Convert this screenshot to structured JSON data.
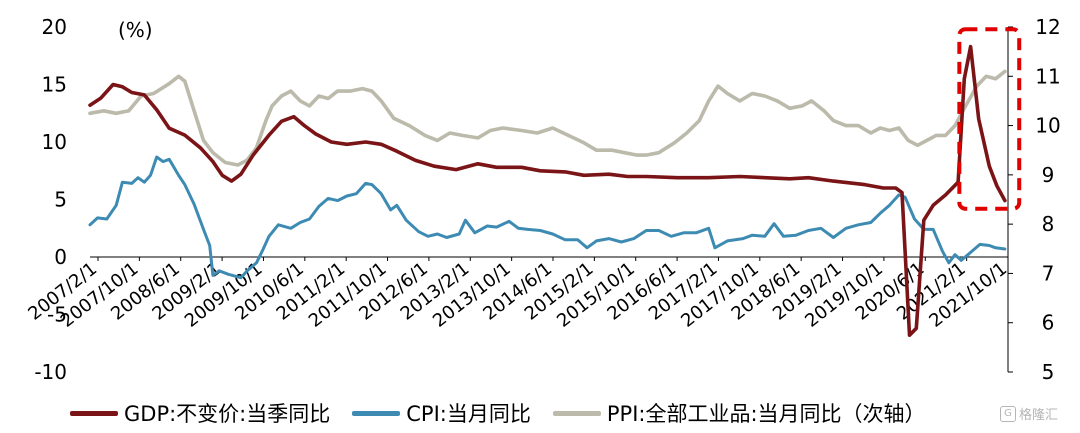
{
  "chart_data": {
    "type": "line",
    "unit_label": "(%)",
    "x_tick_labels": [
      "2007/2/1",
      "2007/10/1",
      "2008/6/1",
      "2009/2/1",
      "2009/10/1",
      "2010/6/1",
      "2011/2/1",
      "2011/10/1",
      "2012/6/1",
      "2013/2/1",
      "2013/10/1",
      "2014/6/1",
      "2015/2/1",
      "2015/10/1",
      "2016/6/1",
      "2017/2/1",
      "2017/10/1",
      "2018/6/1",
      "2019/2/1",
      "2019/10/1",
      "2020/6/1",
      "2021/2/1",
      "2021/10/1"
    ],
    "x_range": [
      2007.08,
      2021.8
    ],
    "y_left": {
      "ticks": [
        "20",
        "15",
        "10",
        "5",
        "0",
        "-5",
        "-10"
      ],
      "ylim": [
        -10,
        20
      ]
    },
    "y_right": {
      "ticks": [
        "12",
        "11",
        "10",
        "9",
        "8",
        "7",
        "6",
        "5"
      ],
      "ylim": [
        5,
        12
      ]
    },
    "series": [
      {
        "name": "GDP:不变价:当季同比",
        "axis": "left",
        "color": "#7a1416",
        "points": [
          [
            2007.08,
            13.2
          ],
          [
            2007.25,
            13.8
          ],
          [
            2007.45,
            15.0
          ],
          [
            2007.6,
            14.8
          ],
          [
            2007.75,
            14.3
          ],
          [
            2007.95,
            14.1
          ],
          [
            2008.15,
            12.8
          ],
          [
            2008.35,
            11.2
          ],
          [
            2008.6,
            10.6
          ],
          [
            2008.85,
            9.5
          ],
          [
            2009.05,
            8.3
          ],
          [
            2009.2,
            7.1
          ],
          [
            2009.35,
            6.6
          ],
          [
            2009.5,
            7.2
          ],
          [
            2009.7,
            8.9
          ],
          [
            2009.95,
            10.6
          ],
          [
            2010.15,
            11.8
          ],
          [
            2010.35,
            12.2
          ],
          [
            2010.5,
            11.5
          ],
          [
            2010.7,
            10.7
          ],
          [
            2010.95,
            10.0
          ],
          [
            2011.2,
            9.8
          ],
          [
            2011.5,
            10.0
          ],
          [
            2011.75,
            9.8
          ],
          [
            2012.0,
            9.2
          ],
          [
            2012.3,
            8.4
          ],
          [
            2012.6,
            7.9
          ],
          [
            2012.95,
            7.6
          ],
          [
            2013.3,
            8.1
          ],
          [
            2013.6,
            7.8
          ],
          [
            2014.0,
            7.8
          ],
          [
            2014.3,
            7.5
          ],
          [
            2014.7,
            7.4
          ],
          [
            2015.0,
            7.1
          ],
          [
            2015.4,
            7.2
          ],
          [
            2015.7,
            7.0
          ],
          [
            2016.0,
            7.0
          ],
          [
            2016.5,
            6.9
          ],
          [
            2017.0,
            6.9
          ],
          [
            2017.5,
            7.0
          ],
          [
            2017.9,
            6.9
          ],
          [
            2018.3,
            6.8
          ],
          [
            2018.6,
            6.9
          ],
          [
            2019.0,
            6.6
          ],
          [
            2019.5,
            6.3
          ],
          [
            2019.8,
            6.0
          ],
          [
            2020.0,
            6.0
          ],
          [
            2020.1,
            5.6
          ],
          [
            2020.22,
            -6.8
          ],
          [
            2020.33,
            -6.2
          ],
          [
            2020.45,
            3.2
          ],
          [
            2020.6,
            4.5
          ],
          [
            2020.8,
            5.4
          ],
          [
            2021.0,
            6.5
          ],
          [
            2021.1,
            15.5
          ],
          [
            2021.2,
            18.3
          ],
          [
            2021.33,
            12.0
          ],
          [
            2021.5,
            7.9
          ],
          [
            2021.62,
            6.2
          ],
          [
            2021.75,
            4.9
          ]
        ]
      },
      {
        "name": "CPI:当月同比",
        "axis": "left",
        "color": "#3d8bb3",
        "points": [
          [
            2007.08,
            2.8
          ],
          [
            2007.2,
            3.4
          ],
          [
            2007.35,
            3.3
          ],
          [
            2007.5,
            4.5
          ],
          [
            2007.6,
            6.5
          ],
          [
            2007.75,
            6.4
          ],
          [
            2007.85,
            6.9
          ],
          [
            2007.95,
            6.5
          ],
          [
            2008.05,
            7.1
          ],
          [
            2008.15,
            8.7
          ],
          [
            2008.25,
            8.3
          ],
          [
            2008.35,
            8.5
          ],
          [
            2008.5,
            7.1
          ],
          [
            2008.6,
            6.3
          ],
          [
            2008.75,
            4.6
          ],
          [
            2008.9,
            2.4
          ],
          [
            2009.0,
            1.0
          ],
          [
            2009.05,
            -1.6
          ],
          [
            2009.15,
            -1.2
          ],
          [
            2009.3,
            -1.5
          ],
          [
            2009.5,
            -1.8
          ],
          [
            2009.6,
            -1.2
          ],
          [
            2009.75,
            -0.5
          ],
          [
            2009.85,
            0.6
          ],
          [
            2009.95,
            1.8
          ],
          [
            2010.1,
            2.8
          ],
          [
            2010.3,
            2.5
          ],
          [
            2010.45,
            3.0
          ],
          [
            2010.6,
            3.3
          ],
          [
            2010.75,
            4.4
          ],
          [
            2010.9,
            5.1
          ],
          [
            2011.05,
            4.9
          ],
          [
            2011.2,
            5.3
          ],
          [
            2011.35,
            5.5
          ],
          [
            2011.5,
            6.4
          ],
          [
            2011.6,
            6.3
          ],
          [
            2011.75,
            5.5
          ],
          [
            2011.9,
            4.1
          ],
          [
            2012.0,
            4.5
          ],
          [
            2012.15,
            3.2
          ],
          [
            2012.35,
            2.2
          ],
          [
            2012.5,
            1.8
          ],
          [
            2012.65,
            2.0
          ],
          [
            2012.8,
            1.7
          ],
          [
            2013.0,
            2.0
          ],
          [
            2013.1,
            3.2
          ],
          [
            2013.25,
            2.1
          ],
          [
            2013.45,
            2.7
          ],
          [
            2013.6,
            2.6
          ],
          [
            2013.8,
            3.1
          ],
          [
            2013.95,
            2.5
          ],
          [
            2014.1,
            2.4
          ],
          [
            2014.3,
            2.3
          ],
          [
            2014.5,
            2.0
          ],
          [
            2014.7,
            1.5
          ],
          [
            2014.9,
            1.5
          ],
          [
            2015.05,
            0.8
          ],
          [
            2015.2,
            1.4
          ],
          [
            2015.4,
            1.6
          ],
          [
            2015.6,
            1.3
          ],
          [
            2015.8,
            1.6
          ],
          [
            2016.0,
            2.3
          ],
          [
            2016.2,
            2.3
          ],
          [
            2016.4,
            1.8
          ],
          [
            2016.6,
            2.1
          ],
          [
            2016.8,
            2.1
          ],
          [
            2017.0,
            2.5
          ],
          [
            2017.1,
            0.8
          ],
          [
            2017.3,
            1.4
          ],
          [
            2017.55,
            1.6
          ],
          [
            2017.7,
            1.9
          ],
          [
            2017.9,
            1.8
          ],
          [
            2018.05,
            2.9
          ],
          [
            2018.2,
            1.8
          ],
          [
            2018.4,
            1.9
          ],
          [
            2018.6,
            2.3
          ],
          [
            2018.8,
            2.5
          ],
          [
            2019.0,
            1.7
          ],
          [
            2019.2,
            2.5
          ],
          [
            2019.4,
            2.8
          ],
          [
            2019.6,
            3.0
          ],
          [
            2019.75,
            3.8
          ],
          [
            2019.9,
            4.5
          ],
          [
            2020.05,
            5.4
          ],
          [
            2020.15,
            5.2
          ],
          [
            2020.3,
            3.3
          ],
          [
            2020.45,
            2.4
          ],
          [
            2020.6,
            2.4
          ],
          [
            2020.75,
            0.5
          ],
          [
            2020.85,
            -0.5
          ],
          [
            2020.95,
            0.2
          ],
          [
            2021.05,
            -0.3
          ],
          [
            2021.2,
            0.4
          ],
          [
            2021.35,
            1.1
          ],
          [
            2021.5,
            1.0
          ],
          [
            2021.6,
            0.8
          ],
          [
            2021.75,
            0.7
          ]
        ]
      },
      {
        "name": "PPI:全部工业品:当月同比（次轴）",
        "axis": "right",
        "color": "#bbbaab",
        "points": [
          [
            2007.08,
            10.25
          ],
          [
            2007.3,
            10.3
          ],
          [
            2007.5,
            10.25
          ],
          [
            2007.7,
            10.3
          ],
          [
            2007.9,
            10.6
          ],
          [
            2008.1,
            10.65
          ],
          [
            2008.35,
            10.85
          ],
          [
            2008.5,
            11.0
          ],
          [
            2008.6,
            10.9
          ],
          [
            2008.75,
            10.3
          ],
          [
            2008.9,
            9.7
          ],
          [
            2009.05,
            9.45
          ],
          [
            2009.25,
            9.25
          ],
          [
            2009.45,
            9.2
          ],
          [
            2009.6,
            9.3
          ],
          [
            2009.75,
            9.55
          ],
          [
            2009.9,
            10.1
          ],
          [
            2010.0,
            10.4
          ],
          [
            2010.15,
            10.6
          ],
          [
            2010.3,
            10.7
          ],
          [
            2010.45,
            10.5
          ],
          [
            2010.6,
            10.4
          ],
          [
            2010.75,
            10.6
          ],
          [
            2010.9,
            10.55
          ],
          [
            2011.05,
            10.7
          ],
          [
            2011.25,
            10.7
          ],
          [
            2011.45,
            10.75
          ],
          [
            2011.6,
            10.7
          ],
          [
            2011.75,
            10.5
          ],
          [
            2011.95,
            10.15
          ],
          [
            2012.2,
            10.0
          ],
          [
            2012.45,
            9.8
          ],
          [
            2012.65,
            9.7
          ],
          [
            2012.85,
            9.85
          ],
          [
            2013.05,
            9.8
          ],
          [
            2013.3,
            9.75
          ],
          [
            2013.5,
            9.9
          ],
          [
            2013.7,
            9.95
          ],
          [
            2014.0,
            9.9
          ],
          [
            2014.25,
            9.85
          ],
          [
            2014.5,
            9.95
          ],
          [
            2014.75,
            9.8
          ],
          [
            2015.0,
            9.65
          ],
          [
            2015.2,
            9.5
          ],
          [
            2015.45,
            9.5
          ],
          [
            2015.65,
            9.45
          ],
          [
            2015.85,
            9.4
          ],
          [
            2016.0,
            9.4
          ],
          [
            2016.2,
            9.45
          ],
          [
            2016.45,
            9.65
          ],
          [
            2016.65,
            9.85
          ],
          [
            2016.85,
            10.1
          ],
          [
            2017.0,
            10.5
          ],
          [
            2017.15,
            10.8
          ],
          [
            2017.3,
            10.65
          ],
          [
            2017.5,
            10.5
          ],
          [
            2017.7,
            10.65
          ],
          [
            2017.9,
            10.6
          ],
          [
            2018.1,
            10.5
          ],
          [
            2018.3,
            10.35
          ],
          [
            2018.5,
            10.4
          ],
          [
            2018.65,
            10.5
          ],
          [
            2018.85,
            10.3
          ],
          [
            2019.0,
            10.1
          ],
          [
            2019.2,
            10.0
          ],
          [
            2019.4,
            10.0
          ],
          [
            2019.6,
            9.85
          ],
          [
            2019.75,
            9.95
          ],
          [
            2019.9,
            9.9
          ],
          [
            2020.05,
            9.95
          ],
          [
            2020.2,
            9.7
          ],
          [
            2020.35,
            9.6
          ],
          [
            2020.5,
            9.7
          ],
          [
            2020.65,
            9.8
          ],
          [
            2020.8,
            9.8
          ],
          [
            2020.95,
            10.0
          ],
          [
            2021.1,
            10.35
          ],
          [
            2021.3,
            10.8
          ],
          [
            2021.45,
            11.0
          ],
          [
            2021.6,
            10.95
          ],
          [
            2021.75,
            11.1
          ]
        ]
      }
    ],
    "highlight_box": {
      "x_range": [
        2021.02,
        2021.98
      ],
      "y_range_left": [
        4.2,
        19.8
      ],
      "color": "#e00000",
      "style": "dashed"
    }
  },
  "legend": {
    "items": [
      {
        "label": "GDP:不变价:当季同比",
        "color": "#7a1416"
      },
      {
        "label": "CPI:当月同比",
        "color": "#3d8bb3"
      },
      {
        "label": "PPI:全部工业品:当月同比（次轴）",
        "color": "#bbbaab"
      }
    ]
  },
  "watermark": {
    "icon_text": "G",
    "label": "格隆汇"
  }
}
